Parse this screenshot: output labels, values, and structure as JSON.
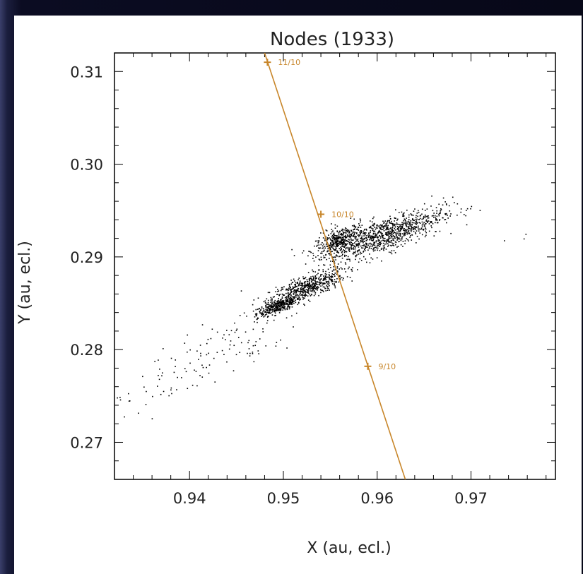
{
  "chart_data": {
    "type": "scatter",
    "title": "Nodes (1933)",
    "xlabel": "X (au, ecl.)",
    "ylabel": "Y (au, ecl.)",
    "xlim": [
      0.932,
      0.979
    ],
    "ylim": [
      0.266,
      0.312
    ],
    "xticks": [
      0.94,
      0.95,
      0.96,
      0.97
    ],
    "xtick_labels": [
      "0.94",
      "0.95",
      "0.96",
      "0.97"
    ],
    "yticks": [
      0.27,
      0.28,
      0.29,
      0.3,
      0.31
    ],
    "ytick_labels": [
      "0.27",
      "0.28",
      "0.29",
      "0.30",
      "0.31"
    ],
    "grid": false,
    "point_color": "#000000",
    "earth_track_color": "#c8862a",
    "clusters": [
      {
        "center": [
          0.9495,
          0.2848
        ],
        "spread": [
          0.0012,
          0.00035
        ],
        "count": 380
      },
      {
        "center": [
          0.9525,
          0.2868
        ],
        "spread": [
          0.002,
          0.0006
        ],
        "count": 520
      },
      {
        "center": [
          0.956,
          0.2918
        ],
        "spread": [
          0.0013,
          0.0007
        ],
        "count": 420
      },
      {
        "center": [
          0.961,
          0.2925
        ],
        "spread": [
          0.003,
          0.0009
        ],
        "count": 900
      },
      {
        "center": [
          0.944,
          0.2805
        ],
        "spread": [
          0.004,
          0.0015
        ],
        "count": 90
      },
      {
        "center": [
          0.9375,
          0.2765
        ],
        "spread": [
          0.003,
          0.0015
        ],
        "count": 40
      }
    ],
    "isolated_points": [
      [
        0.9335,
        0.2745
      ],
      [
        0.9345,
        0.2732
      ],
      [
        0.933,
        0.2728
      ],
      [
        0.936,
        0.275
      ],
      [
        0.97,
        0.2955
      ],
      [
        0.9735,
        0.2918
      ],
      [
        0.9756,
        0.292
      ],
      [
        0.9758,
        0.2925
      ],
      [
        0.968,
        0.2965
      ],
      [
        0.9672,
        0.296
      ]
    ],
    "earth_track": {
      "line": [
        [
          0.948,
          0.312
        ],
        [
          0.963,
          0.266
        ]
      ],
      "markers": [
        {
          "x": 0.9483,
          "y": 0.311,
          "label": "11/10"
        },
        {
          "x": 0.954,
          "y": 0.2946,
          "label": "10/10"
        },
        {
          "x": 0.959,
          "y": 0.2782,
          "label": "9/10"
        }
      ]
    }
  }
}
